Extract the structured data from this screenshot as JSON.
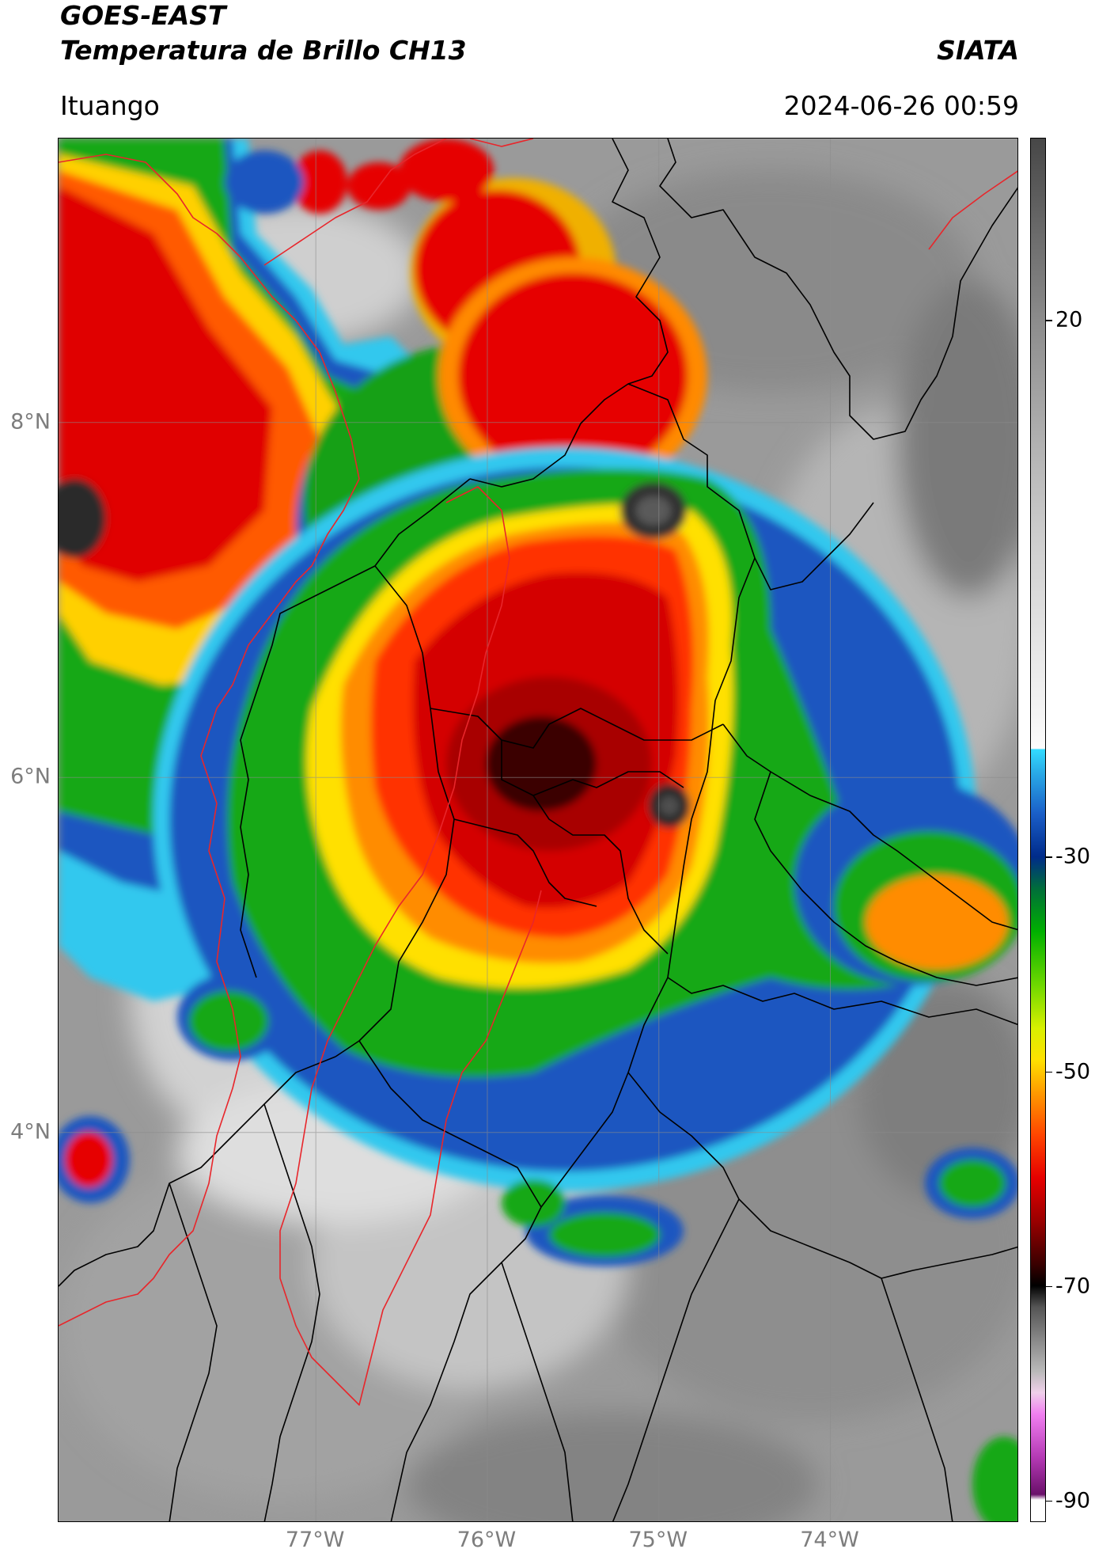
{
  "header": {
    "satellite": "GOES-EAST",
    "product": "Temperatura de Brillo CH13",
    "organization": "SIATA",
    "region": "Ituango",
    "datetime": "2024-06-26 00:59"
  },
  "map": {
    "projection": "PlateCarree",
    "lon_range": [
      -78.5,
      -72.9
    ],
    "lat_range": [
      1.8,
      9.6
    ],
    "lat_ticks": [
      {
        "value": 8,
        "label": "8°N"
      },
      {
        "value": 6,
        "label": "6°N"
      },
      {
        "value": 4,
        "label": "4°N"
      }
    ],
    "lon_ticks": [
      {
        "value": -77,
        "label": "77°W"
      },
      {
        "value": -76,
        "label": "76°W"
      },
      {
        "value": -75,
        "label": "75°W"
      },
      {
        "value": -74,
        "label": "74°W"
      }
    ],
    "gridlines": true,
    "boundary_colors": {
      "departments": "#000000",
      "highlighted_region": "#e8262b"
    }
  },
  "colorbar": {
    "label_ticks": [
      {
        "value": 20,
        "label": "20"
      },
      {
        "value": -30,
        "label": "-30"
      },
      {
        "value": -50,
        "label": "-50"
      },
      {
        "value": -70,
        "label": "-70"
      },
      {
        "value": -90,
        "label": "-90"
      }
    ],
    "min": -92,
    "max": 37,
    "units": "°C",
    "color_stops": [
      {
        "value": -92,
        "color": "#ffffff"
      },
      {
        "value": -90,
        "color": "#ffffff"
      },
      {
        "value": -89.5,
        "color": "#6a106a"
      },
      {
        "value": -86,
        "color": "#b53ab5"
      },
      {
        "value": -82,
        "color": "#f07ff0"
      },
      {
        "value": -80,
        "color": "#efd0ea"
      },
      {
        "value": -78,
        "color": "#b9b9b9"
      },
      {
        "value": -72,
        "color": "#555555"
      },
      {
        "value": -70,
        "color": "#000000"
      },
      {
        "value": -68,
        "color": "#3a0000"
      },
      {
        "value": -64,
        "color": "#9a0000"
      },
      {
        "value": -60,
        "color": "#e60000"
      },
      {
        "value": -56,
        "color": "#ff4500"
      },
      {
        "value": -52,
        "color": "#ff9b00"
      },
      {
        "value": -49,
        "color": "#ffe000"
      },
      {
        "value": -46,
        "color": "#d8f000"
      },
      {
        "value": -42,
        "color": "#6fd800"
      },
      {
        "value": -37,
        "color": "#00b000"
      },
      {
        "value": -33,
        "color": "#006e3a"
      },
      {
        "value": -30,
        "color": "#002b8a"
      },
      {
        "value": -26,
        "color": "#1a5ec8"
      },
      {
        "value": -22,
        "color": "#2aaee8"
      },
      {
        "value": -20,
        "color": "#33dbff"
      },
      {
        "value": -19.9,
        "color": "#fcfcfc"
      },
      {
        "value": 0,
        "color": "#cdcdcd"
      },
      {
        "value": 20,
        "color": "#8c8c8c"
      },
      {
        "value": 37,
        "color": "#474747"
      }
    ]
  }
}
